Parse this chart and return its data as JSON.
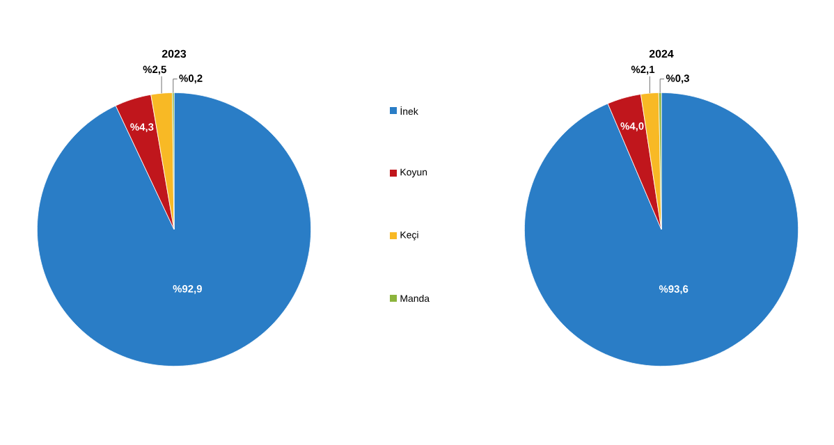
{
  "chart_data": [
    {
      "type": "pie",
      "title": "2023",
      "categories": [
        "İnek",
        "Koyun",
        "Keçi",
        "Manda"
      ],
      "values": [
        92.9,
        4.3,
        2.5,
        0.2
      ],
      "value_labels": [
        "%92,9",
        "%4,3",
        "%2,5",
        "%0,2"
      ],
      "colors": [
        "#2a7dc6",
        "#c0161c",
        "#f8b925",
        "#8cb43c"
      ],
      "legend": "right"
    },
    {
      "type": "pie",
      "title": "2024",
      "categories": [
        null,
        null,
        null,
        null
      ],
      "values": [
        93.6,
        4.0,
        2.1,
        0.3
      ],
      "value_labels": [
        "%93,6",
        "%4,0",
        "%2,1",
        "%0,3"
      ],
      "colors": [
        "#2a7dc6",
        "#c0161c",
        "#f8b925",
        "#8cb43c"
      ]
    }
  ]
}
